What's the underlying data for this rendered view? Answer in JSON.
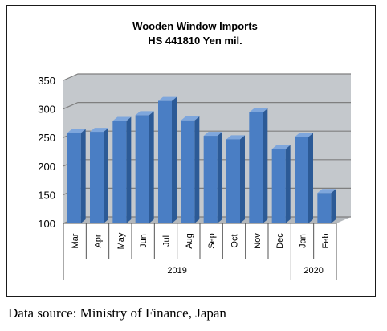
{
  "chart_data": {
    "type": "bar",
    "title": "Wooden Window Imports",
    "subtitle": "HS 441810 Yen mil.",
    "categories": [
      "Mar",
      "Apr",
      "May",
      "Jun",
      "Jul",
      "Aug",
      "Sep",
      "Oct",
      "Nov",
      "Dec",
      "Jan",
      "Feb"
    ],
    "values": [
      258,
      260,
      279,
      289,
      314,
      280,
      253,
      247,
      294,
      230,
      251,
      153
    ],
    "groups": [
      {
        "label": "2019",
        "categories": [
          "Mar",
          "Apr",
          "May",
          "Jun",
          "Jul",
          "Aug",
          "Sep",
          "Oct",
          "Nov",
          "Dec"
        ]
      },
      {
        "label": "2020",
        "categories": [
          "Jan",
          "Feb"
        ]
      }
    ],
    "ylim": [
      100,
      350
    ],
    "yticks": [
      "100",
      "150",
      "200",
      "250",
      "300",
      "350"
    ],
    "grid": true,
    "colors": {
      "bar_front": "#4a7ec4",
      "bar_side": "#2c5a96",
      "bar_top": "#7ea6dc",
      "wall": "#c4c8cc",
      "grid": "#7f7f7f"
    }
  },
  "source": "Data source: Ministry of Finance, Japan"
}
